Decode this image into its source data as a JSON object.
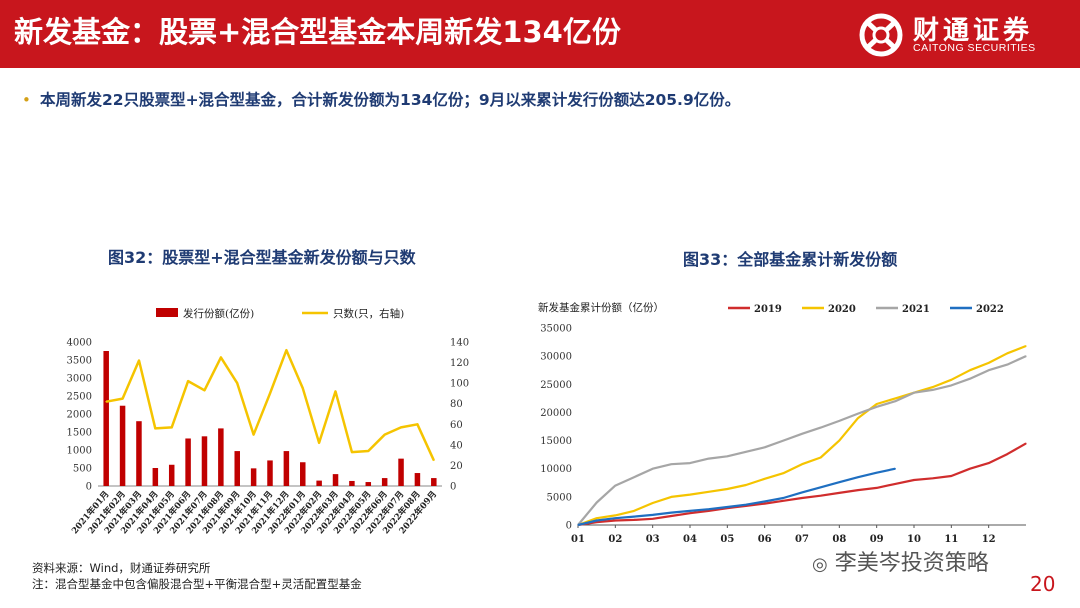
{
  "header": {
    "title": "新发基金：股票+混合型基金本周新发134亿份",
    "logo_cn": "财通证券",
    "logo_en": "CAITONG SECURITIES"
  },
  "bullet": {
    "symbol": "•",
    "text": "本周新发22只股票型+混合型基金，合计新发份额为134亿份；9月以来累计发行份额达205.9亿份。"
  },
  "figure32": {
    "title": "图32：股票型+混合型基金新发份额与只数"
  },
  "figure33": {
    "title": "图33：全部基金累计新发份额"
  },
  "footer": {
    "source": "资料来源：Wind，财通证券研究所",
    "note": "注：混合型基金中包含偏股混合型+平衡混合型+灵活配置型基金",
    "page": "20",
    "watermark": "李美岑投资策略"
  },
  "colors": {
    "brand_red": "#c8161d",
    "navy": "#1f3b73",
    "bar_red": "#c00000",
    "line_yellow": "#f5c400",
    "s2019": "#d02d2d",
    "s2020": "#f5c400",
    "s2021": "#a6a6a6",
    "s2022": "#1f6fc1"
  },
  "chart_data": [
    {
      "type": "bar+line",
      "title": "图32：股票型+混合型基金新发份额与只数",
      "categories": [
        "2021年01月",
        "2021年02月",
        "2021年03月",
        "2021年04月",
        "2021年05月",
        "2021年06月",
        "2021年07月",
        "2021年08月",
        "2021年09月",
        "2021年10月",
        "2021年11月",
        "2021年12月",
        "2022年01月",
        "2022年02月",
        "2022年03月",
        "2022年04月",
        "2022年05月",
        "2022年06月",
        "2022年07月",
        "2022年08月",
        "2022年09月"
      ],
      "series": [
        {
          "name": "发行份额(亿份)",
          "type": "bar",
          "axis": "left",
          "values": [
            3750,
            2230,
            1800,
            500,
            590,
            1320,
            1380,
            1600,
            970,
            490,
            710,
            970,
            660,
            150,
            330,
            140,
            110,
            220,
            760,
            360,
            220
          ]
        },
        {
          "name": "只数(只，右轴)",
          "type": "line",
          "axis": "right",
          "values": [
            82,
            85,
            122,
            56,
            57,
            102,
            93,
            125,
            100,
            50,
            90,
            132,
            95,
            42,
            92,
            33,
            34,
            50,
            57,
            60,
            25
          ]
        }
      ],
      "ylim_left": [
        0,
        4000
      ],
      "yticks_left": [
        0,
        500,
        1000,
        1500,
        2000,
        2500,
        3000,
        3500,
        4000
      ],
      "ylim_right": [
        0,
        140
      ],
      "yticks_right": [
        0,
        20,
        40,
        60,
        80,
        100,
        120,
        140
      ],
      "legend": "top"
    },
    {
      "type": "line",
      "title": "图33：全部基金累计新发份额",
      "ylabel": "新发基金累计份额（亿份）",
      "xtick_labels": [
        "01",
        "02",
        "03",
        "04",
        "05",
        "06",
        "07",
        "08",
        "09",
        "10",
        "11",
        "12"
      ],
      "xlim": [
        1,
        13
      ],
      "ylim": [
        0,
        35000
      ],
      "yticks": [
        0,
        5000,
        10000,
        15000,
        20000,
        25000,
        30000,
        35000
      ],
      "legend": "top",
      "series": [
        {
          "name": "2019",
          "x": [
            1,
            1.5,
            2,
            2.5,
            3,
            3.5,
            4,
            4.5,
            5,
            5.5,
            6,
            6.5,
            7,
            7.5,
            8,
            8.5,
            9,
            9.5,
            10,
            10.5,
            11,
            11.5,
            12,
            12.5,
            13
          ],
          "values": [
            0,
            500,
            800,
            900,
            1100,
            1600,
            2100,
            2500,
            3000,
            3400,
            3800,
            4300,
            4800,
            5200,
            5700,
            6200,
            6600,
            7300,
            8000,
            8300,
            8700,
            10000,
            11000,
            12600,
            14500
          ]
        },
        {
          "name": "2020",
          "x": [
            1,
            1.5,
            2,
            2.5,
            3,
            3.5,
            4,
            4.5,
            5,
            5.5,
            6,
            6.5,
            7,
            7.5,
            8,
            8.5,
            9,
            9.5,
            10,
            10.5,
            11,
            11.5,
            12,
            12.5,
            13
          ],
          "values": [
            0,
            1200,
            1700,
            2500,
            3900,
            5000,
            5400,
            5900,
            6400,
            7100,
            8200,
            9200,
            10800,
            12000,
            15000,
            19000,
            21500,
            22500,
            23500,
            24500,
            25800,
            27500,
            28800,
            30500,
            31800
          ]
        },
        {
          "name": "2021",
          "x": [
            1,
            1.5,
            2,
            2.5,
            3,
            3.5,
            4,
            4.5,
            5,
            5.5,
            6,
            6.5,
            7,
            7.5,
            8,
            8.5,
            9,
            9.5,
            10,
            10.5,
            11,
            11.5,
            12,
            12.5,
            13
          ],
          "values": [
            0,
            4000,
            7000,
            8500,
            10000,
            10800,
            11000,
            11800,
            12200,
            13000,
            13800,
            15000,
            16200,
            17300,
            18500,
            19800,
            21000,
            22000,
            23500,
            24000,
            24800,
            26000,
            27500,
            28500,
            30000
          ]
        },
        {
          "name": "2022",
          "x": [
            1,
            1.5,
            2,
            2.5,
            3,
            3.5,
            4,
            4.5,
            5,
            5.5,
            6,
            6.5,
            7,
            7.5,
            8,
            8.5,
            9,
            9.5
          ],
          "values": [
            0,
            800,
            1200,
            1500,
            1800,
            2200,
            2500,
            2800,
            3200,
            3600,
            4200,
            4800,
            5800,
            6700,
            7600,
            8500,
            9300,
            10000
          ]
        }
      ]
    }
  ]
}
